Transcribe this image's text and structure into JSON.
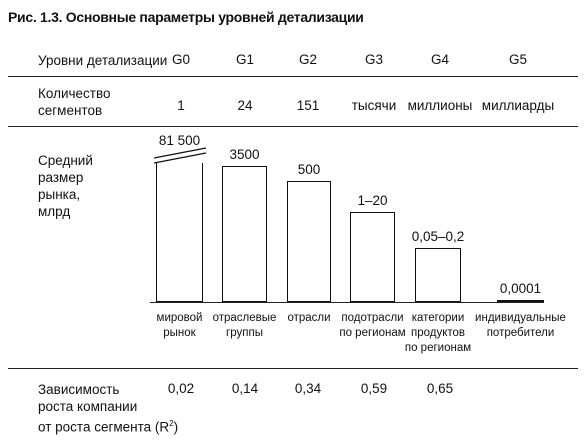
{
  "figure": {
    "title": "Рис. 1.3. Основные параметры уровней детализации"
  },
  "levels_row": {
    "label": "Уровни детализации",
    "levels": [
      "G0",
      "G1",
      "G2",
      "G3",
      "G4",
      "G5"
    ]
  },
  "segments_row": {
    "label_lines": [
      "Количество",
      "сегментов"
    ],
    "values": [
      "1",
      "24",
      "151",
      "тысячи",
      "миллионы",
      "миллиарды"
    ]
  },
  "market_row": {
    "label_lines": [
      "Средний",
      "размер",
      "рынка,",
      "млрд"
    ]
  },
  "chart_data": {
    "type": "bar",
    "categories": [
      "мировой рынок",
      "отраслевые группы",
      "отрасли",
      "подотрасли по регионам",
      "категории продуктов по регионам",
      "индивидуальные потребители"
    ],
    "category_lines": [
      [
        "мировой",
        "рынок"
      ],
      [
        "отраслевые",
        "группы"
      ],
      [
        "отрасли"
      ],
      [
        "подотрасли",
        "по регионам"
      ],
      [
        "категории",
        "продуктов",
        "по регионам"
      ],
      [
        "индивидуальные",
        "потребители"
      ]
    ],
    "value_labels": [
      "81 500",
      "3500",
      "500",
      "1–20",
      "0,05–0,2",
      "0,0001"
    ],
    "values": [
      81500,
      3500,
      500,
      10,
      0.1,
      0.0001
    ],
    "axis_break_on_first_bar": true,
    "grid": false,
    "legend": "none"
  },
  "correlation_row": {
    "label_lines": [
      "Зависимость",
      "роста компании",
      "от роста сегмента (R"
    ],
    "label_superscript": "2",
    "label_suffix": ")",
    "values": [
      "0,02",
      "0,14",
      "0,34",
      "0,59",
      "0,65",
      ""
    ]
  }
}
